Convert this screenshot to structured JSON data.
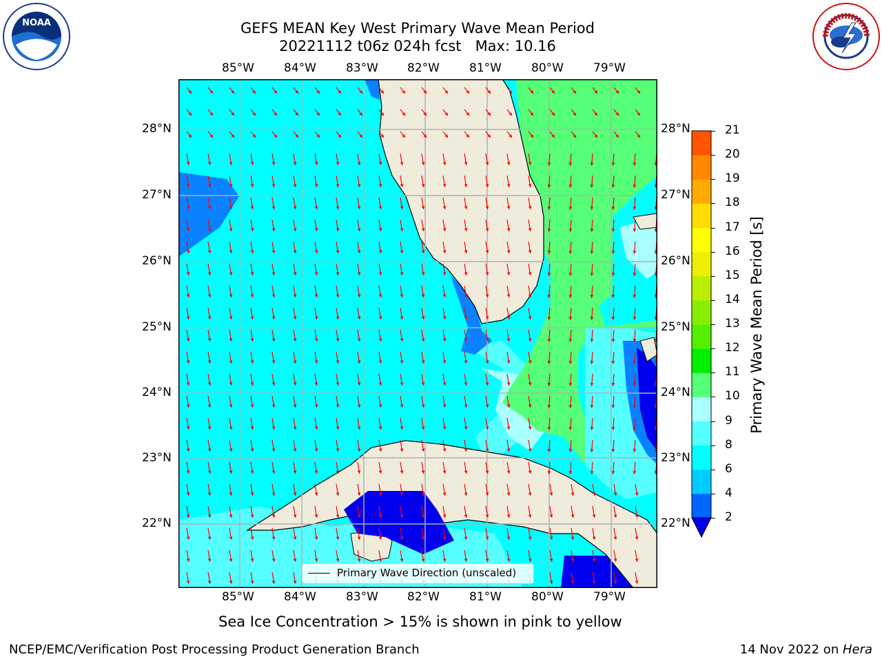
{
  "title_line1": "GEFS MEAN Key West Primary Wave Mean Period",
  "title_line2": "20221112 t06z 024h fcst   Max: 10.16",
  "lon_labels": [
    "85°W",
    "84°W",
    "83°W",
    "82°W",
    "81°W",
    "80°W",
    "79°W"
  ],
  "lat_labels": [
    "28°N",
    "27°N",
    "26°N",
    "25°N",
    "24°N",
    "23°N",
    "22°N"
  ],
  "colorbar": {
    "label": "Primary Wave Mean Period [s]",
    "ticks": [
      "2",
      "4",
      "6",
      "8",
      "9",
      "10",
      "11",
      "12",
      "13",
      "14",
      "15",
      "16",
      "17",
      "18",
      "19",
      "20",
      "21"
    ],
    "colors": [
      "#0066ff",
      "#00ccff",
      "#00ffff",
      "#55ffff",
      "#aaffff",
      "#55ff77",
      "#00ee00",
      "#55ee00",
      "#88ee00",
      "#bbee00",
      "#eeee00",
      "#ffff00",
      "#ffdd00",
      "#ffaa00",
      "#ff8800",
      "#ff5500",
      "#ff2200",
      "#ff0000"
    ],
    "under_color": "#0000ee"
  },
  "legend_label": "Primary Wave Direction (unscaled)",
  "sea_ice_note": "Sea Ice Concentration > 15% is shown in pink to yellow",
  "footer_left": "NCEP/EMC/Verification Post Processing Product Generation Branch",
  "footer_right_date": "14 Nov 2022 on ",
  "footer_right_host": "Hera",
  "logos": {
    "left": "NOAA",
    "right": "NATIONAL WEATHER SERVICE"
  }
}
